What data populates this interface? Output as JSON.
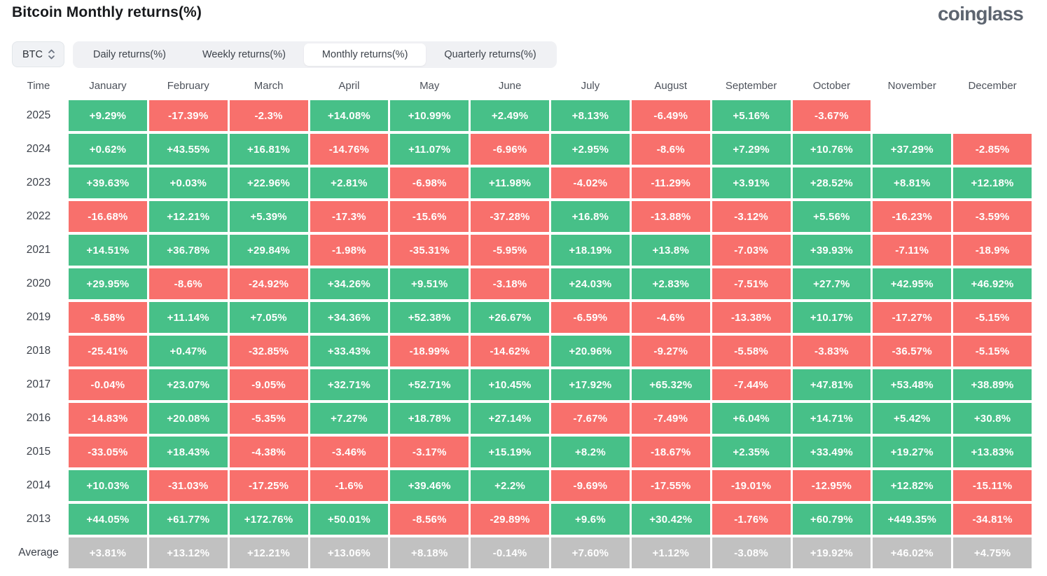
{
  "page": {
    "title": "Bitcoin Monthly returns(%)",
    "logo_text": "coinglass"
  },
  "toolbar": {
    "symbol_selector": {
      "value": "BTC",
      "icon": "updown-chevron-icon"
    },
    "tabs": [
      {
        "label": "Daily returns(%)",
        "selected": false
      },
      {
        "label": "Weekly returns(%)",
        "selected": false
      },
      {
        "label": "Monthly returns(%)",
        "selected": true
      },
      {
        "label": "Quarterly returns(%)",
        "selected": false
      }
    ]
  },
  "chart_data": {
    "type": "heatmap",
    "title": "Bitcoin Monthly returns(%)",
    "columns": [
      "Time",
      "January",
      "February",
      "March",
      "April",
      "May",
      "June",
      "July",
      "August",
      "September",
      "October",
      "November",
      "December"
    ],
    "rows": [
      {
        "label": "2025",
        "type": "year",
        "values": [
          "+9.29%",
          "-17.39%",
          "-2.3%",
          "+14.08%",
          "+10.99%",
          "+2.49%",
          "+8.13%",
          "-6.49%",
          "+5.16%",
          "-3.67%",
          null,
          null
        ]
      },
      {
        "label": "2024",
        "type": "year",
        "values": [
          "+0.62%",
          "+43.55%",
          "+16.81%",
          "-14.76%",
          "+11.07%",
          "-6.96%",
          "+2.95%",
          "-8.6%",
          "+7.29%",
          "+10.76%",
          "+37.29%",
          "-2.85%"
        ]
      },
      {
        "label": "2023",
        "type": "year",
        "values": [
          "+39.63%",
          "+0.03%",
          "+22.96%",
          "+2.81%",
          "-6.98%",
          "+11.98%",
          "-4.02%",
          "-11.29%",
          "+3.91%",
          "+28.52%",
          "+8.81%",
          "+12.18%"
        ]
      },
      {
        "label": "2022",
        "type": "year",
        "values": [
          "-16.68%",
          "+12.21%",
          "+5.39%",
          "-17.3%",
          "-15.6%",
          "-37.28%",
          "+16.8%",
          "-13.88%",
          "-3.12%",
          "+5.56%",
          "-16.23%",
          "-3.59%"
        ]
      },
      {
        "label": "2021",
        "type": "year",
        "values": [
          "+14.51%",
          "+36.78%",
          "+29.84%",
          "-1.98%",
          "-35.31%",
          "-5.95%",
          "+18.19%",
          "+13.8%",
          "-7.03%",
          "+39.93%",
          "-7.11%",
          "-18.9%"
        ]
      },
      {
        "label": "2020",
        "type": "year",
        "values": [
          "+29.95%",
          "-8.6%",
          "-24.92%",
          "+34.26%",
          "+9.51%",
          "-3.18%",
          "+24.03%",
          "+2.83%",
          "-7.51%",
          "+27.7%",
          "+42.95%",
          "+46.92%"
        ]
      },
      {
        "label": "2019",
        "type": "year",
        "values": [
          "-8.58%",
          "+11.14%",
          "+7.05%",
          "+34.36%",
          "+52.38%",
          "+26.67%",
          "-6.59%",
          "-4.6%",
          "-13.38%",
          "+10.17%",
          "-17.27%",
          "-5.15%"
        ]
      },
      {
        "label": "2018",
        "type": "year",
        "values": [
          "-25.41%",
          "+0.47%",
          "-32.85%",
          "+33.43%",
          "-18.99%",
          "-14.62%",
          "+20.96%",
          "-9.27%",
          "-5.58%",
          "-3.83%",
          "-36.57%",
          "-5.15%"
        ]
      },
      {
        "label": "2017",
        "type": "year",
        "values": [
          "-0.04%",
          "+23.07%",
          "-9.05%",
          "+32.71%",
          "+52.71%",
          "+10.45%",
          "+17.92%",
          "+65.32%",
          "-7.44%",
          "+47.81%",
          "+53.48%",
          "+38.89%"
        ]
      },
      {
        "label": "2016",
        "type": "year",
        "values": [
          "-14.83%",
          "+20.08%",
          "-5.35%",
          "+7.27%",
          "+18.78%",
          "+27.14%",
          "-7.67%",
          "-7.49%",
          "+6.04%",
          "+14.71%",
          "+5.42%",
          "+30.8%"
        ]
      },
      {
        "label": "2015",
        "type": "year",
        "values": [
          "-33.05%",
          "+18.43%",
          "-4.38%",
          "-3.46%",
          "-3.17%",
          "+15.19%",
          "+8.2%",
          "-18.67%",
          "+2.35%",
          "+33.49%",
          "+19.27%",
          "+13.83%"
        ]
      },
      {
        "label": "2014",
        "type": "year",
        "values": [
          "+10.03%",
          "-31.03%",
          "-17.25%",
          "-1.6%",
          "+39.46%",
          "+2.2%",
          "-9.69%",
          "-17.55%",
          "-19.01%",
          "-12.95%",
          "+12.82%",
          "-15.11%"
        ]
      },
      {
        "label": "2013",
        "type": "year",
        "values": [
          "+44.05%",
          "+61.77%",
          "+172.76%",
          "+50.01%",
          "-8.56%",
          "-29.89%",
          "+9.6%",
          "+30.42%",
          "-1.76%",
          "+60.79%",
          "+449.35%",
          "-34.81%"
        ]
      },
      {
        "label": "Average",
        "type": "average",
        "values": [
          "+3.81%",
          "+13.12%",
          "+12.21%",
          "+13.06%",
          "+8.18%",
          "-0.14%",
          "+7.60%",
          "+1.12%",
          "-3.08%",
          "+19.92%",
          "+46.02%",
          "+4.75%"
        ]
      }
    ],
    "colors": {
      "positive": "#47c088",
      "negative": "#f8706c",
      "average": "#c1c1c1",
      "cell_text": "#ffffff"
    },
    "legend": "green = positive monthly return, red = negative monthly return, gray = column average"
  }
}
